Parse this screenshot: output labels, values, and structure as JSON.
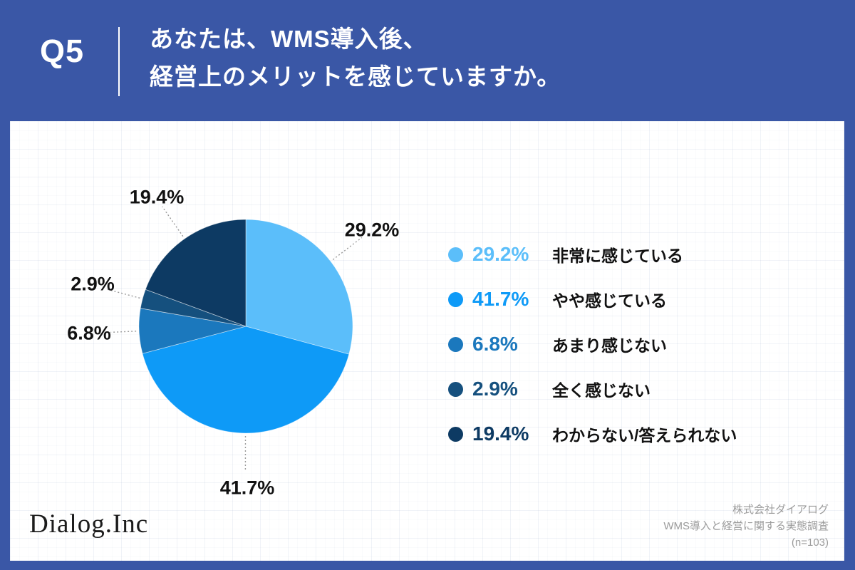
{
  "header": {
    "question_number": "Q5",
    "title_line1": "あなたは、WMS導入後、",
    "title_line2": "経営上のメリットを感じていますか。"
  },
  "chart_data": {
    "type": "pie",
    "title": "WMS導入後に経営上のメリットを感じているか",
    "start_angle_deg": 0,
    "direction": "clockwise",
    "legend_position": "right",
    "slices": [
      {
        "label": "非常に感じている",
        "value": 29.2,
        "display": "29.2%",
        "color": "#5BBEFA"
      },
      {
        "label": "やや感じている",
        "value": 41.7,
        "display": "41.7%",
        "color": "#0E9AF7"
      },
      {
        "label": "あまり感じない",
        "value": 6.8,
        "display": "6.8%",
        "color": "#1B78BD"
      },
      {
        "label": "全く感じない",
        "value": 2.9,
        "display": "2.9%",
        "color": "#15507E"
      },
      {
        "label": "わからない/答えられない",
        "value": 19.4,
        "display": "19.4%",
        "color": "#0D3A63"
      }
    ]
  },
  "footer": {
    "logo_text": "Dialog.Inc",
    "company": "株式会社ダイアログ",
    "survey": "WMS導入と経営に関する実態調査",
    "sample": "(n=103)"
  },
  "colors": {
    "header_bg": "#3A57A6",
    "card_bg": "#FFFFFF",
    "leader_line": "#9a9a9a",
    "pie_label_text": "#111111",
    "footer_text": "#9b9b9b"
  }
}
